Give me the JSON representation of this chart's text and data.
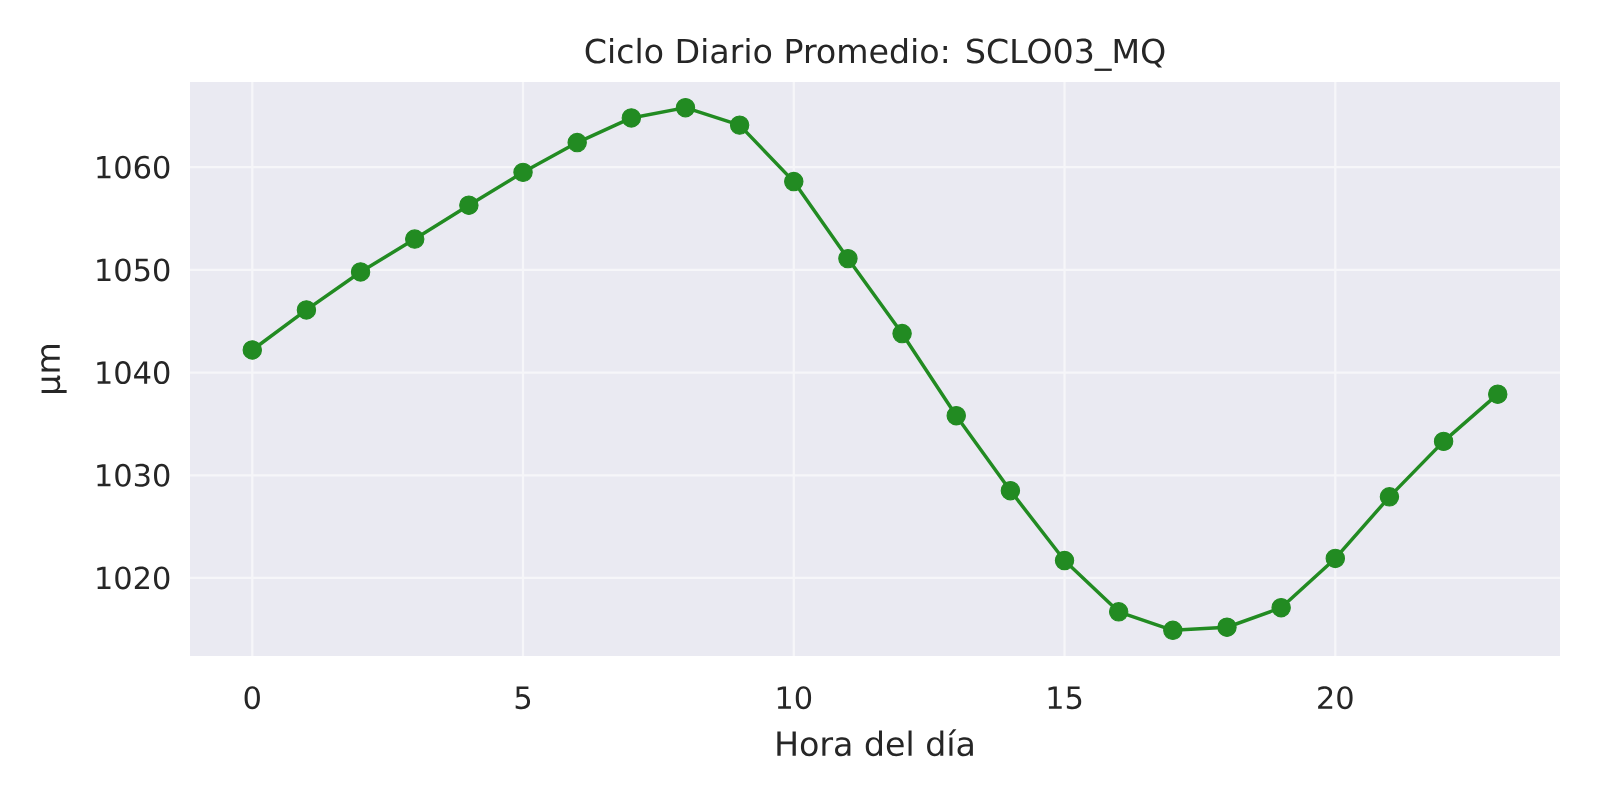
{
  "chart_data": {
    "type": "line",
    "title": "Ciclo Diario Promedio: SCLO03_MQ",
    "xlabel": "Hora del día",
    "ylabel": "µm",
    "x": [
      0,
      1,
      2,
      3,
      4,
      5,
      6,
      7,
      8,
      9,
      10,
      11,
      12,
      13,
      14,
      15,
      16,
      17,
      18,
      19,
      20,
      21,
      22,
      23
    ],
    "series": [
      {
        "color": "#228b22",
        "values": [
          1042.2,
          1046.1,
          1049.8,
          1053.0,
          1056.3,
          1059.5,
          1062.4,
          1064.8,
          1065.8,
          1064.1,
          1058.6,
          1051.1,
          1043.8,
          1035.8,
          1028.5,
          1021.7,
          1016.7,
          1014.9,
          1015.2,
          1017.1,
          1021.9,
          1027.9,
          1033.3,
          1037.9
        ]
      }
    ],
    "xlim": [
      -1.15,
      24.15
    ],
    "ylim": [
      1012.4,
      1068.3
    ],
    "xticks": [
      0,
      5,
      10,
      15,
      20
    ],
    "yticks": [
      1020,
      1030,
      1040,
      1050,
      1060
    ],
    "grid": true,
    "marker": "circle",
    "line_style": "solid"
  }
}
